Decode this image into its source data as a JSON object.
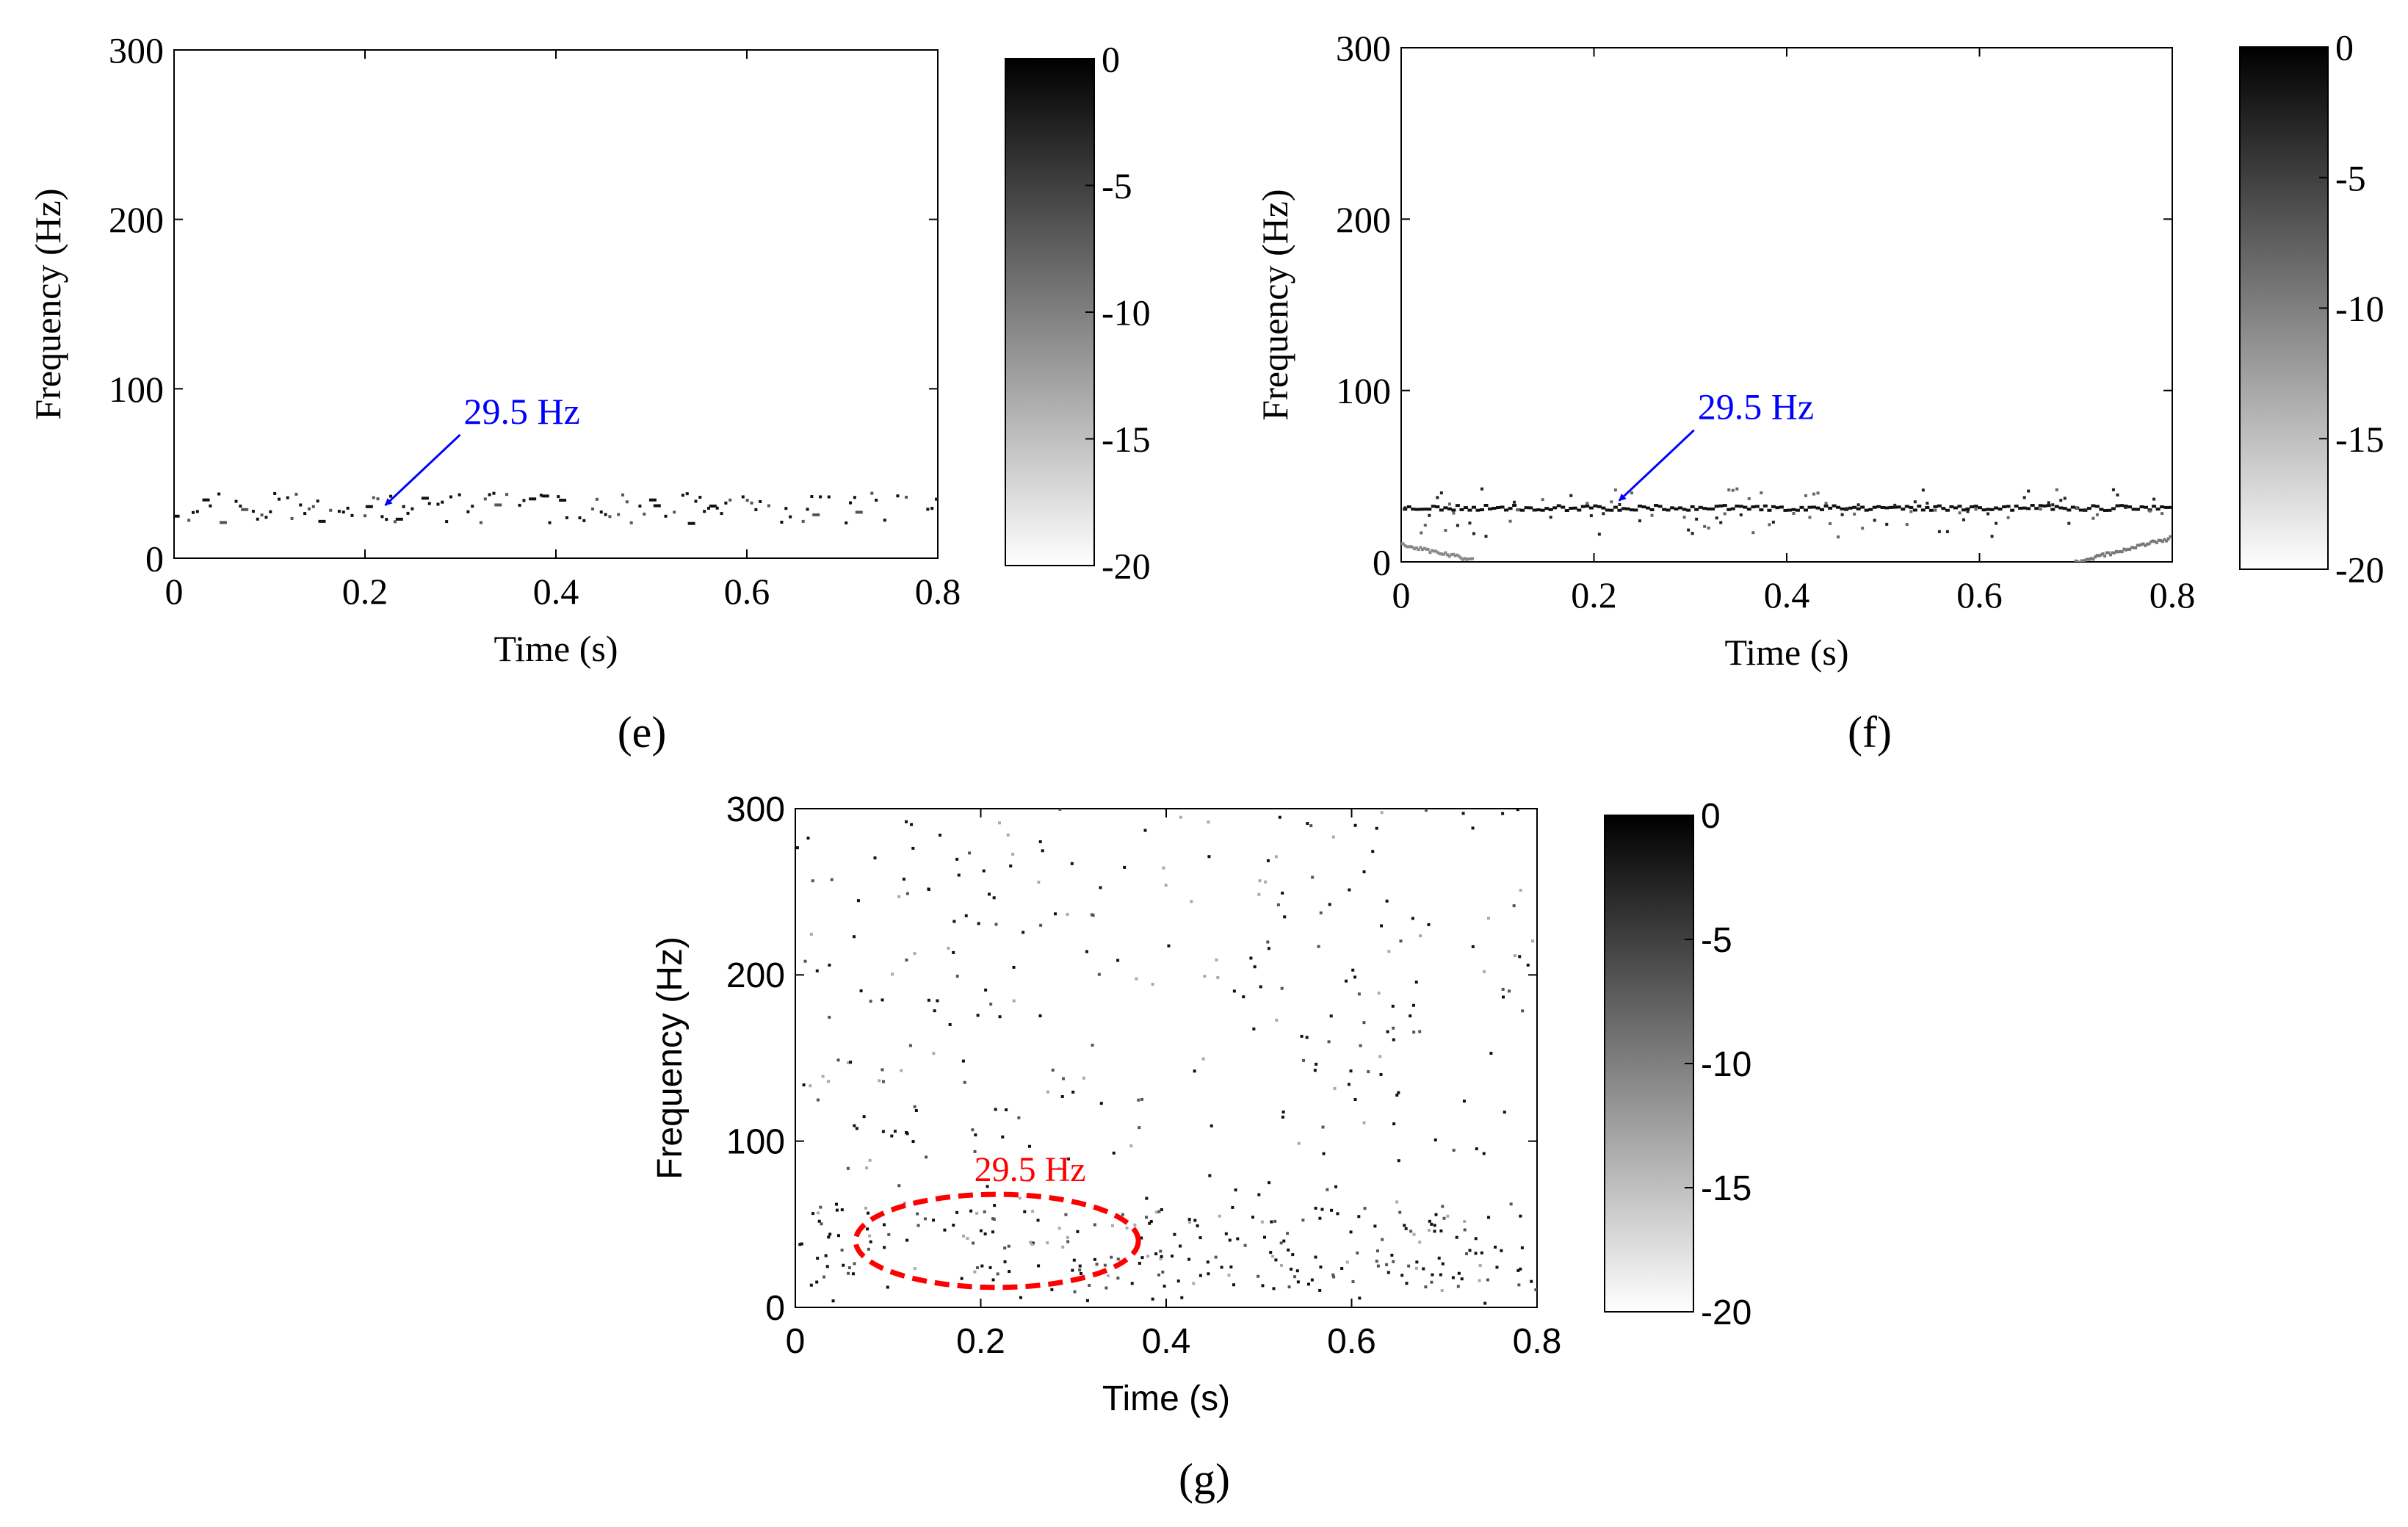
{
  "chart_data": [
    {
      "type": "heatmap",
      "panel_label": "(e)",
      "xlabel": "Time (s)",
      "ylabel": "Frequency (Hz)",
      "xlim": [
        0,
        0.8
      ],
      "ylim": [
        0,
        300
      ],
      "xticks": [
        "0",
        "0.2",
        "0.4",
        "0.6",
        "0.8"
      ],
      "yticks": [
        "0",
        "100",
        "200",
        "300"
      ],
      "colorbar": {
        "ticks": [
          "0",
          "-5",
          "-10",
          "-15",
          "-20"
        ],
        "range": [
          -20,
          0
        ]
      },
      "annotation": {
        "text": "29.5 Hz",
        "x": 0.215,
        "y": 29.5,
        "color": "#0000ff"
      },
      "band_center_hz": 29.5,
      "font": "serif"
    },
    {
      "type": "heatmap",
      "panel_label": "(f)",
      "xlabel": "Time (s)",
      "ylabel": "Frequency (Hz)",
      "xlim": [
        0,
        0.8
      ],
      "ylim": [
        0,
        300
      ],
      "xticks": [
        "0",
        "0.2",
        "0.4",
        "0.6",
        "0.8"
      ],
      "yticks": [
        "0",
        "100",
        "200",
        "300"
      ],
      "colorbar": {
        "ticks": [
          "0",
          "-5",
          "-10",
          "-15",
          "-20"
        ],
        "range": [
          -20,
          0
        ]
      },
      "annotation": {
        "text": "29.5 Hz",
        "x": 0.22,
        "y": 34,
        "color": "#0000ff"
      },
      "band_center_hz": 29.5,
      "font": "serif"
    },
    {
      "type": "heatmap",
      "panel_label": "(g)",
      "xlabel": "Time (s)",
      "ylabel": "Frequency (Hz)",
      "xlim": [
        0,
        0.8
      ],
      "ylim": [
        0,
        300
      ],
      "xticks": [
        "0",
        "0.2",
        "0.4",
        "0.6",
        "0.8"
      ],
      "yticks": [
        "0",
        "100",
        "200",
        "300"
      ],
      "colorbar": {
        "ticks": [
          "0",
          "-5",
          "-10",
          "-15",
          "-20"
        ],
        "range": [
          -20,
          0
        ]
      },
      "annotation": {
        "text": "29.5 Hz",
        "x": 0.22,
        "y": 40,
        "color": "#ff0000",
        "shape": "dashed-ellipse",
        "x_span": [
          0.065,
          0.37
        ],
        "y_span": [
          12,
          68
        ]
      },
      "band_center_hz": 29.5,
      "font": "sans"
    }
  ]
}
